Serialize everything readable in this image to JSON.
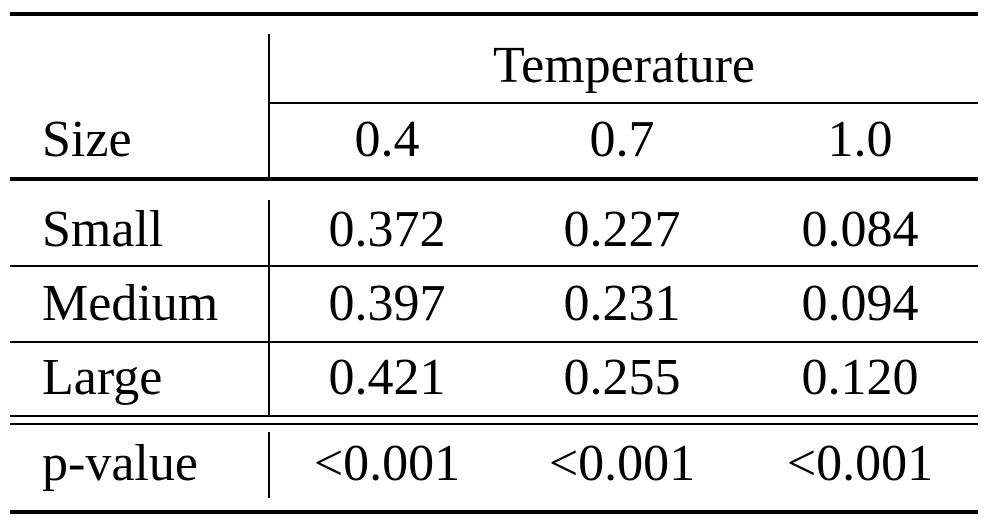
{
  "table": {
    "group_header": "Temperature",
    "row_header": "Size",
    "columns": [
      "0.4",
      "0.7",
      "1.0"
    ],
    "rows": [
      {
        "label": "Small",
        "values": [
          "0.372",
          "0.227",
          "0.084"
        ]
      },
      {
        "label": "Medium",
        "values": [
          "0.397",
          "0.231",
          "0.094"
        ]
      },
      {
        "label": "Large",
        "values": [
          "0.421",
          "0.255",
          "0.120"
        ]
      }
    ],
    "pvalue_row": {
      "label": "p-value",
      "values": [
        "<0.001",
        "<0.001",
        "<0.001"
      ]
    }
  }
}
